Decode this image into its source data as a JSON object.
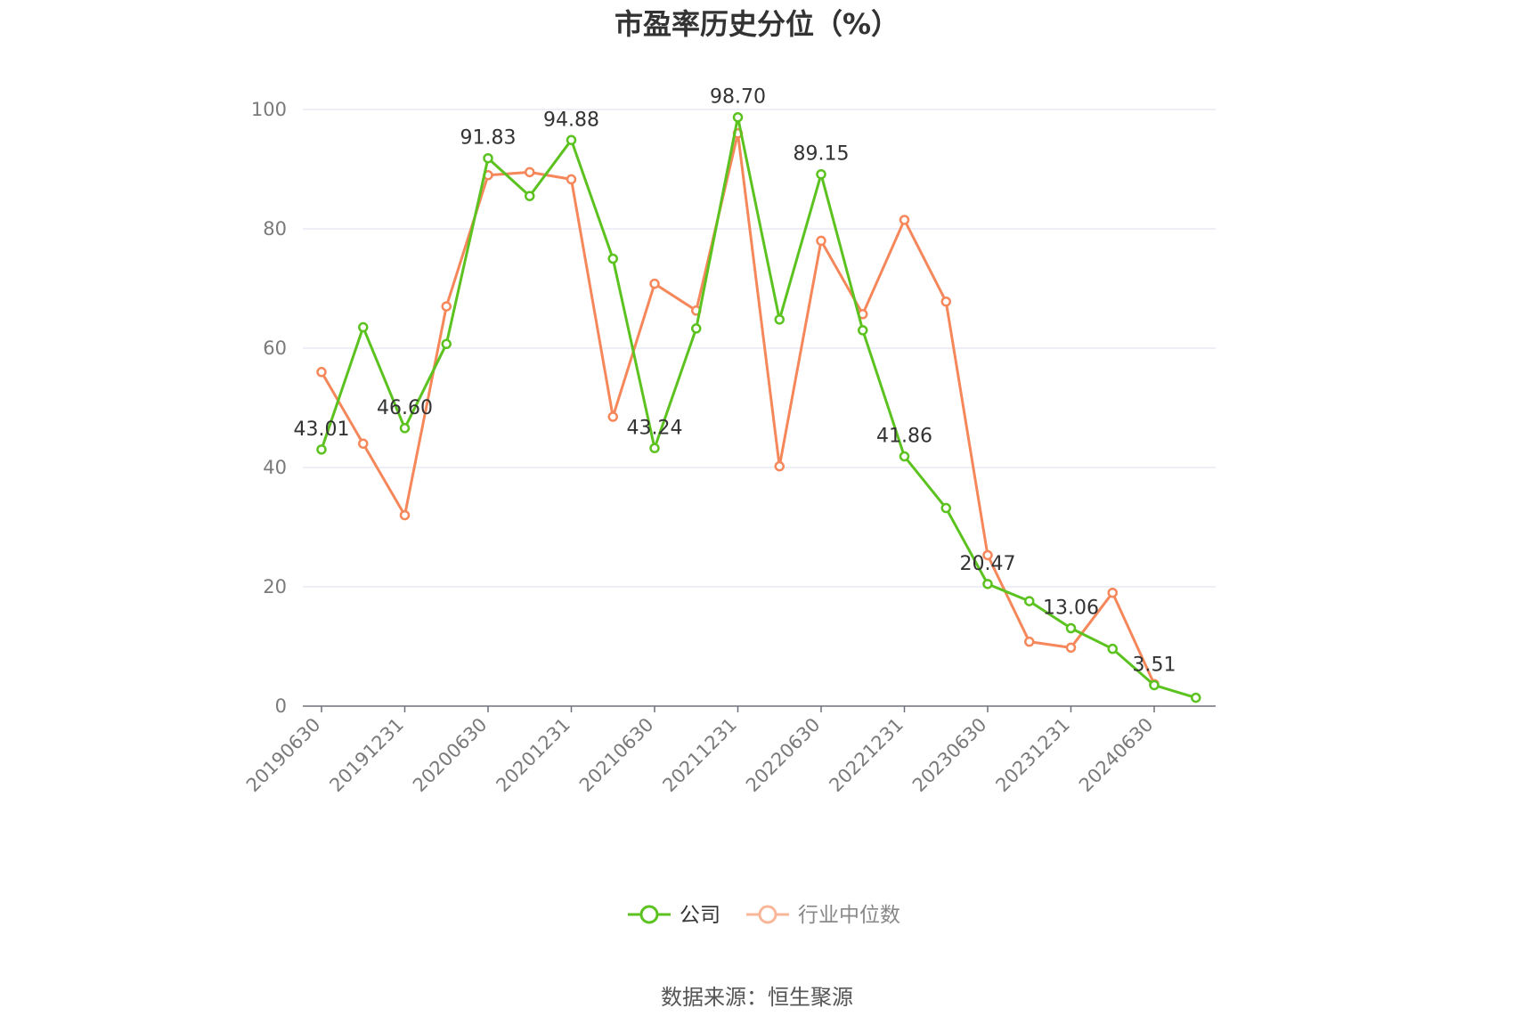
{
  "chart_data": {
    "type": "line",
    "title": "市盈率历史分位（%）",
    "x_tick_labels": [
      "20190630",
      "20191231",
      "20200630",
      "20201231",
      "20210630",
      "20211231",
      "20220630",
      "20221231",
      "20230630",
      "20231231",
      "20240630"
    ],
    "x": [
      "20190630",
      "20190930",
      "20191231",
      "20200331",
      "20200630",
      "20200930",
      "20201231",
      "20210331",
      "20210630",
      "20210930",
      "20211231",
      "20220331",
      "20220630",
      "20220930",
      "20221231",
      "20230331",
      "20230630",
      "20230930",
      "20231231",
      "20240331",
      "20240630",
      "20240930"
    ],
    "ylim": [
      0,
      100
    ],
    "yticks": [
      0,
      20,
      40,
      60,
      80,
      100
    ],
    "grid": true,
    "legend_position": "bottom",
    "series": [
      {
        "name": "公司",
        "color": "#5bc21f",
        "values": [
          43.01,
          63.5,
          46.6,
          60.7,
          91.83,
          85.5,
          94.88,
          75.0,
          43.24,
          63.3,
          98.7,
          64.8,
          89.15,
          63.0,
          41.86,
          33.2,
          20.47,
          17.6,
          13.06,
          9.6,
          3.51,
          1.4
        ],
        "labels": [
          [
            "20190630",
            "43.01"
          ],
          [
            "20191231",
            "46.60"
          ],
          [
            "20200630",
            "91.83"
          ],
          [
            "20201231",
            "94.88"
          ],
          [
            "20210630",
            "43.24"
          ],
          [
            "20211231",
            "98.70"
          ],
          [
            "20220630",
            "89.15"
          ],
          [
            "20221231",
            "41.86"
          ],
          [
            "20230630",
            "20.47"
          ],
          [
            "20231231",
            "13.06"
          ],
          [
            "20240630",
            "3.51"
          ]
        ]
      },
      {
        "name": "行业中位数",
        "color": "#f5875a",
        "values": [
          56.0,
          44.0,
          32.0,
          67.0,
          89.0,
          89.5,
          88.3,
          48.5,
          70.8,
          66.3,
          96.0,
          40.2,
          78.0,
          65.7,
          81.5,
          67.8,
          25.3,
          10.8,
          9.8,
          19.0,
          3.7,
          null
        ]
      }
    ]
  },
  "source_text": "数据来源：恒生聚源"
}
